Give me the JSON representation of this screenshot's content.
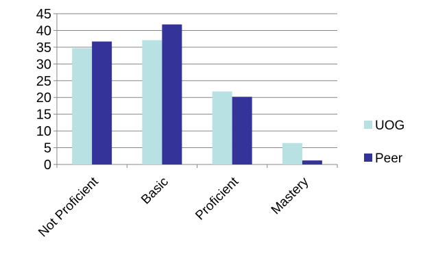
{
  "chart_data": {
    "type": "bar",
    "title": "",
    "xlabel": "",
    "ylabel": "",
    "categories": [
      "Not Proficient",
      "Basic",
      "Proficient",
      "Mastery"
    ],
    "series": [
      {
        "name": "UOG",
        "values": [
          34.7,
          37.1,
          21.8,
          6.4
        ],
        "color": "#B7E1E3"
      },
      {
        "name": "Peer",
        "values": [
          36.7,
          41.8,
          20.2,
          1.2
        ],
        "color": "#333399"
      }
    ],
    "ylim": [
      0,
      45
    ],
    "yticks": [
      0,
      5,
      10,
      15,
      20,
      25,
      30,
      35,
      40,
      45
    ],
    "grid": true,
    "legend_position": "right"
  }
}
